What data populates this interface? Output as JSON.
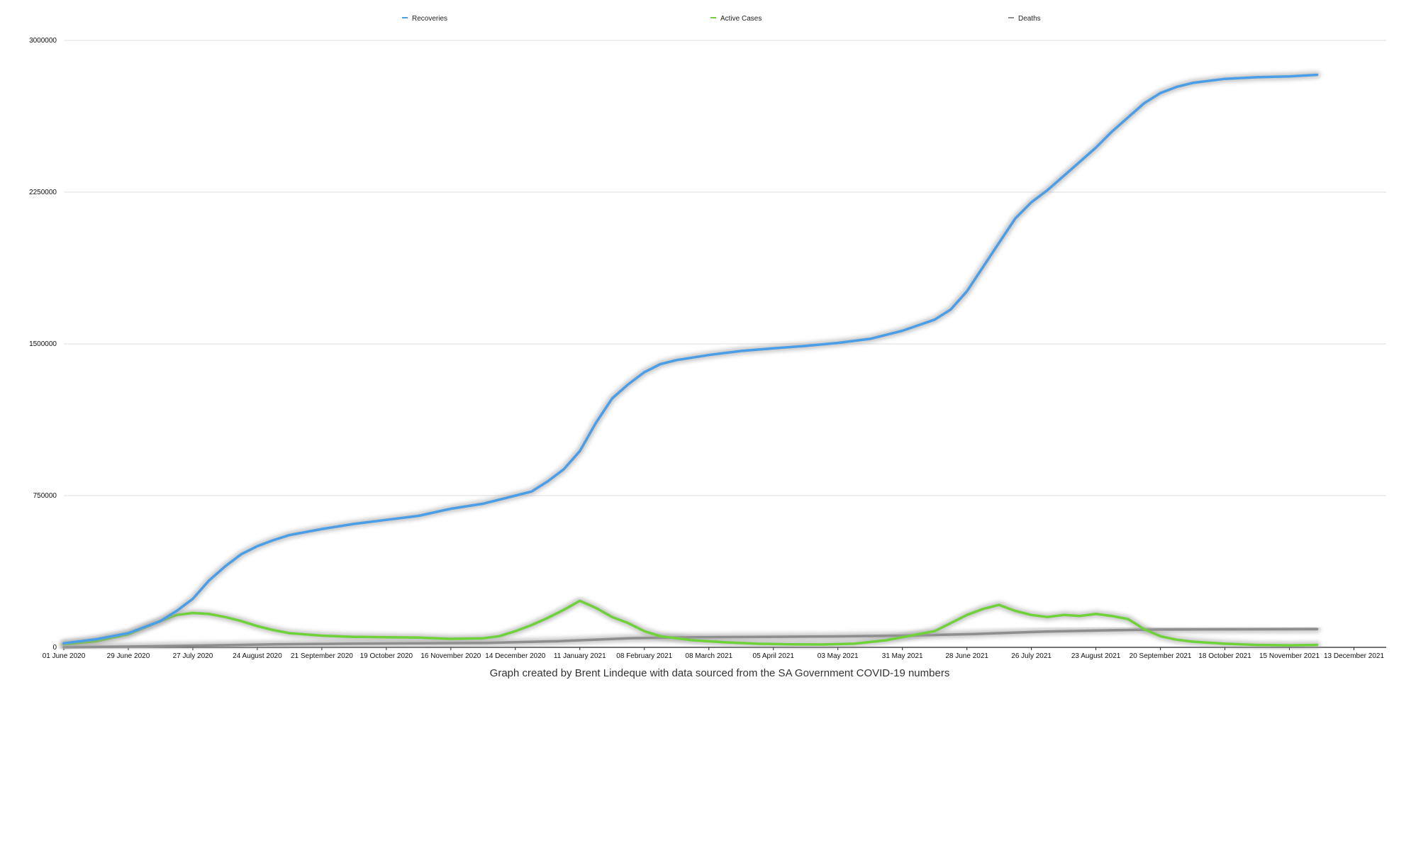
{
  "chart_data": {
    "type": "line",
    "title": "",
    "xlabel": "",
    "ylabel": "",
    "caption": "Graph created by Brent Lindeque with data sourced from the SA Government COVID-19 numbers",
    "legend_position": "top",
    "grid": {
      "horizontal": true,
      "vertical": false
    },
    "ylim": [
      0,
      3000000
    ],
    "yticks": [
      0,
      750000,
      1500000,
      2250000,
      3000000
    ],
    "ytick_labels": [
      "0",
      "750000",
      "1500000",
      "2250000",
      "3000000"
    ],
    "xlim": [
      "2020-06-01",
      "2021-12-27"
    ],
    "xticks": [
      "2020-06-01",
      "2020-06-29",
      "2020-07-27",
      "2020-08-24",
      "2020-09-21",
      "2020-10-19",
      "2020-11-16",
      "2020-12-14",
      "2021-01-11",
      "2021-02-08",
      "2021-03-08",
      "2021-04-05",
      "2021-05-03",
      "2021-05-31",
      "2021-06-28",
      "2021-07-26",
      "2021-08-23",
      "2021-09-20",
      "2021-10-18",
      "2021-11-15",
      "2021-12-13"
    ],
    "xtick_labels": [
      "01 June 2020",
      "29 June 2020",
      "27 July 2020",
      "24 August 2020",
      "21 September 2020",
      "19 October 2020",
      "16 November 2020",
      "14 December 2020",
      "11 January 2021",
      "08 February 2021",
      "08 March 2021",
      "05 April 2021",
      "03 May 2021",
      "31 May 2021",
      "28 June 2021",
      "26 July 2021",
      "23 August 2021",
      "20 September 2021",
      "18 October 2021",
      "15 November 2021",
      "13 December 2021"
    ],
    "series": [
      {
        "name": "Recoveries",
        "color": "#4a9ee8",
        "points": [
          [
            "2020-06-01",
            20000
          ],
          [
            "2020-06-15",
            40000
          ],
          [
            "2020-06-29",
            70000
          ],
          [
            "2020-07-13",
            130000
          ],
          [
            "2020-07-20",
            180000
          ],
          [
            "2020-07-27",
            240000
          ],
          [
            "2020-08-03",
            330000
          ],
          [
            "2020-08-10",
            400000
          ],
          [
            "2020-08-17",
            460000
          ],
          [
            "2020-08-24",
            500000
          ],
          [
            "2020-08-31",
            530000
          ],
          [
            "2020-09-07",
            555000
          ],
          [
            "2020-09-21",
            585000
          ],
          [
            "2020-10-05",
            610000
          ],
          [
            "2020-10-19",
            630000
          ],
          [
            "2020-11-02",
            650000
          ],
          [
            "2020-11-16",
            685000
          ],
          [
            "2020-11-30",
            710000
          ],
          [
            "2020-12-14",
            750000
          ],
          [
            "2020-12-21",
            770000
          ],
          [
            "2020-12-28",
            820000
          ],
          [
            "2021-01-04",
            880000
          ],
          [
            "2021-01-11",
            970000
          ],
          [
            "2021-01-18",
            1110000
          ],
          [
            "2021-01-25",
            1230000
          ],
          [
            "2021-02-01",
            1300000
          ],
          [
            "2021-02-08",
            1360000
          ],
          [
            "2021-02-15",
            1400000
          ],
          [
            "2021-02-22",
            1420000
          ],
          [
            "2021-03-08",
            1445000
          ],
          [
            "2021-03-22",
            1465000
          ],
          [
            "2021-04-05",
            1478000
          ],
          [
            "2021-04-19",
            1490000
          ],
          [
            "2021-05-03",
            1505000
          ],
          [
            "2021-05-17",
            1525000
          ],
          [
            "2021-05-31",
            1565000
          ],
          [
            "2021-06-14",
            1620000
          ],
          [
            "2021-06-21",
            1670000
          ],
          [
            "2021-06-28",
            1760000
          ],
          [
            "2021-07-05",
            1880000
          ],
          [
            "2021-07-12",
            2000000
          ],
          [
            "2021-07-19",
            2120000
          ],
          [
            "2021-07-26",
            2200000
          ],
          [
            "2021-08-02",
            2260000
          ],
          [
            "2021-08-09",
            2330000
          ],
          [
            "2021-08-16",
            2400000
          ],
          [
            "2021-08-23",
            2470000
          ],
          [
            "2021-08-30",
            2550000
          ],
          [
            "2021-09-06",
            2620000
          ],
          [
            "2021-09-13",
            2690000
          ],
          [
            "2021-09-20",
            2740000
          ],
          [
            "2021-09-27",
            2770000
          ],
          [
            "2021-10-04",
            2790000
          ],
          [
            "2021-10-18",
            2810000
          ],
          [
            "2021-11-01",
            2818000
          ],
          [
            "2021-11-15",
            2822000
          ],
          [
            "2021-11-27",
            2830000
          ]
        ]
      },
      {
        "name": "Active Cases",
        "color": "#6fd23a",
        "points": [
          [
            "2020-06-01",
            15000
          ],
          [
            "2020-06-15",
            30000
          ],
          [
            "2020-06-29",
            65000
          ],
          [
            "2020-07-13",
            130000
          ],
          [
            "2020-07-20",
            160000
          ],
          [
            "2020-07-27",
            170000
          ],
          [
            "2020-08-03",
            165000
          ],
          [
            "2020-08-10",
            150000
          ],
          [
            "2020-08-17",
            130000
          ],
          [
            "2020-08-24",
            105000
          ],
          [
            "2020-08-31",
            85000
          ],
          [
            "2020-09-07",
            70000
          ],
          [
            "2020-09-21",
            58000
          ],
          [
            "2020-10-05",
            52000
          ],
          [
            "2020-10-19",
            50000
          ],
          [
            "2020-11-02",
            48000
          ],
          [
            "2020-11-16",
            42000
          ],
          [
            "2020-11-30",
            45000
          ],
          [
            "2020-12-07",
            55000
          ],
          [
            "2020-12-14",
            80000
          ],
          [
            "2020-12-21",
            110000
          ],
          [
            "2020-12-28",
            145000
          ],
          [
            "2021-01-04",
            185000
          ],
          [
            "2021-01-11",
            230000
          ],
          [
            "2021-01-18",
            195000
          ],
          [
            "2021-01-25",
            150000
          ],
          [
            "2021-02-01",
            120000
          ],
          [
            "2021-02-08",
            80000
          ],
          [
            "2021-02-15",
            55000
          ],
          [
            "2021-03-01",
            35000
          ],
          [
            "2021-03-15",
            25000
          ],
          [
            "2021-03-29",
            18000
          ],
          [
            "2021-04-12",
            15000
          ],
          [
            "2021-04-26",
            14000
          ],
          [
            "2021-05-10",
            18000
          ],
          [
            "2021-05-24",
            35000
          ],
          [
            "2021-05-31",
            50000
          ],
          [
            "2021-06-14",
            80000
          ],
          [
            "2021-06-21",
            120000
          ],
          [
            "2021-06-28",
            160000
          ],
          [
            "2021-07-05",
            190000
          ],
          [
            "2021-07-12",
            210000
          ],
          [
            "2021-07-19",
            180000
          ],
          [
            "2021-07-26",
            160000
          ],
          [
            "2021-08-02",
            150000
          ],
          [
            "2021-08-09",
            160000
          ],
          [
            "2021-08-16",
            155000
          ],
          [
            "2021-08-23",
            165000
          ],
          [
            "2021-08-30",
            155000
          ],
          [
            "2021-09-06",
            140000
          ],
          [
            "2021-09-13",
            90000
          ],
          [
            "2021-09-20",
            55000
          ],
          [
            "2021-09-27",
            38000
          ],
          [
            "2021-10-04",
            28000
          ],
          [
            "2021-10-18",
            18000
          ],
          [
            "2021-11-01",
            12000
          ],
          [
            "2021-11-15",
            10000
          ],
          [
            "2021-11-27",
            12000
          ]
        ]
      },
      {
        "name": "Deaths",
        "color": "#8e8e8e",
        "points": [
          [
            "2020-06-01",
            1000
          ],
          [
            "2020-07-01",
            4000
          ],
          [
            "2020-08-01",
            9000
          ],
          [
            "2020-09-01",
            15000
          ],
          [
            "2020-10-01",
            18000
          ],
          [
            "2020-11-01",
            20000
          ],
          [
            "2020-12-01",
            22000
          ],
          [
            "2021-01-01",
            30000
          ],
          [
            "2021-02-01",
            45000
          ],
          [
            "2021-03-01",
            50000
          ],
          [
            "2021-04-01",
            52000
          ],
          [
            "2021-05-01",
            54000
          ],
          [
            "2021-06-01",
            58000
          ],
          [
            "2021-07-01",
            66000
          ],
          [
            "2021-08-01",
            78000
          ],
          [
            "2021-09-01",
            85000
          ],
          [
            "2021-09-20",
            88000
          ],
          [
            "2021-10-18",
            89000
          ],
          [
            "2021-11-27",
            90000
          ]
        ]
      }
    ]
  }
}
